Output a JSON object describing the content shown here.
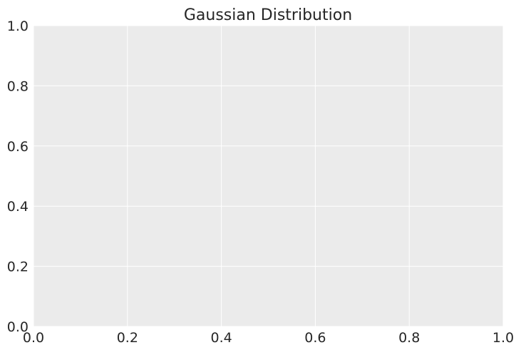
{
  "chart_data": {
    "type": "line",
    "title": "Gaussian Distribution",
    "xlabel": "",
    "ylabel": "",
    "xlim": [
      0,
      1
    ],
    "ylim": [
      0,
      1
    ],
    "xticks": [
      "0.0",
      "0.2",
      "0.4",
      "0.6",
      "0.8",
      "1.0"
    ],
    "yticks": [
      "0.0",
      "0.2",
      "0.4",
      "0.6",
      "0.8",
      "1.0"
    ],
    "series": [],
    "grid": true,
    "legend": "none",
    "colors": {
      "plot_background": "#ebebeb",
      "grid": "#ffffff",
      "text": "#262626"
    }
  }
}
